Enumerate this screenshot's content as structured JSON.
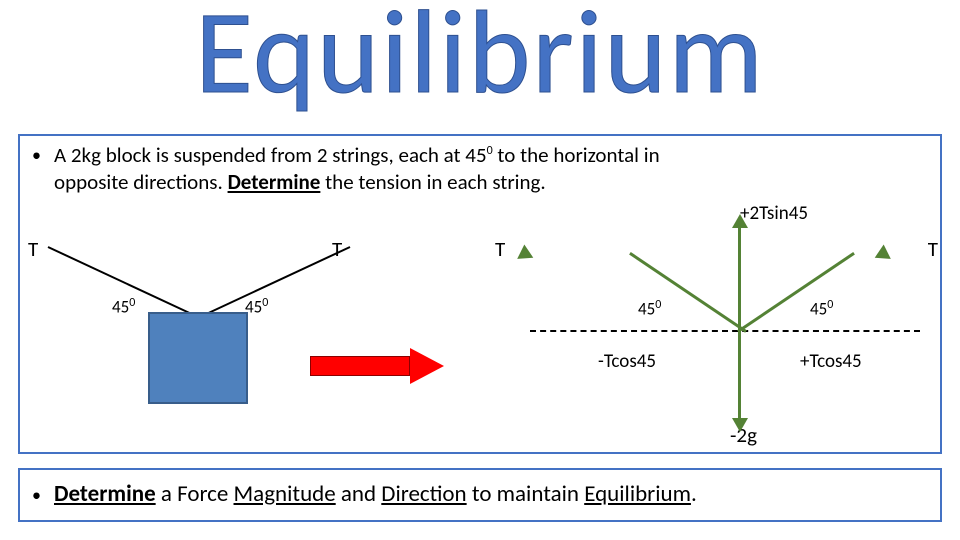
{
  "title": "Equilibrium",
  "problem": {
    "line1_a": "A 2kg block is suspended from 2 strings, each at 45",
    "line1_sup": "0",
    "line1_b": " to the horizontal in",
    "line2_a": "opposite directions. ",
    "line2_det": "Determine",
    "line2_b": " the tension in each string."
  },
  "left_diagram": {
    "T": "T",
    "angle": "45",
    "angle_sup": "0",
    "block_color": "#4f81bd",
    "block_border": "#385d8a",
    "string_color": "#000000"
  },
  "red_arrow": {
    "fill": "#ff0000",
    "border": "#8b0000"
  },
  "fbd": {
    "top": "+2Tsin45",
    "T": "T",
    "angle": "45",
    "angle_sup": "0",
    "neg_tcos": "-Tcos45",
    "pos_tcos": "+Tcos45",
    "bottom": "-2g",
    "vec_color": "#548235",
    "dash_color": "#000000"
  },
  "question2": {
    "det": "Determine",
    "mid_a": " a Force ",
    "mag": "Magnitude",
    "mid_b": " and ",
    "dir": "Direction",
    "mid_c": " to maintain ",
    "eq": "Equilibrium",
    "period": "."
  },
  "colors": {
    "title": "#4472c4",
    "border": "#4472c4",
    "bg": "#ffffff"
  }
}
